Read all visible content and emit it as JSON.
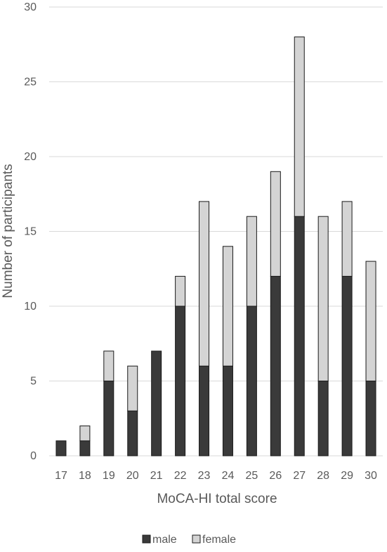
{
  "chart_data": {
    "type": "bar",
    "stacked": true,
    "title": "",
    "xlabel": "MoCA-HI total score",
    "ylabel": "Number of participants",
    "ylim": [
      0,
      30
    ],
    "yticks": [
      0,
      5,
      10,
      15,
      20,
      25,
      30
    ],
    "grid": true,
    "legend_position": "bottom",
    "categories": [
      "17",
      "18",
      "19",
      "20",
      "21",
      "22",
      "23",
      "24",
      "25",
      "26",
      "27",
      "28",
      "29",
      "30"
    ],
    "series": [
      {
        "name": "male",
        "color": "#3a3a3a",
        "values": [
          1,
          1,
          5,
          3,
          7,
          10,
          6,
          6,
          10,
          12,
          16,
          5,
          12,
          5
        ]
      },
      {
        "name": "female",
        "color": "#d4d4d4",
        "values": [
          0,
          1,
          2,
          3,
          0,
          2,
          11,
          8,
          6,
          7,
          12,
          11,
          5,
          8
        ]
      }
    ]
  }
}
